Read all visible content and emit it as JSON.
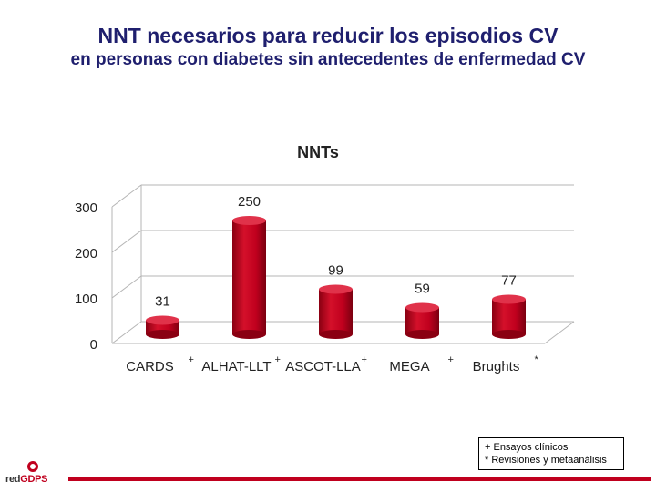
{
  "header": {
    "title": "NNT necesarios para reducir los episodios CV",
    "subtitle": "en personas con diabetes sin antecedentes de enfermedad CV"
  },
  "chart_data": {
    "type": "bar",
    "title": "NNTs",
    "categories": [
      "CARDS",
      "ALHAT-LLT",
      "ASCOT-LLA",
      "MEGA",
      "Brughts"
    ],
    "category_marks": [
      "+",
      "+",
      "+",
      "+",
      "*"
    ],
    "values": [
      31,
      250,
      99,
      59,
      77
    ],
    "ylim": [
      0,
      300
    ],
    "yticks": [
      0,
      100,
      200,
      300
    ],
    "grid": true,
    "bar_color": "#c0001e",
    "style": "3d-cylinder"
  },
  "legend": {
    "line1": "+  Ensayos clínicos",
    "line2": "*  Revisiones y metaanálisis"
  },
  "logo": {
    "text_prefix": "red",
    "text_accent": "GDPS"
  }
}
